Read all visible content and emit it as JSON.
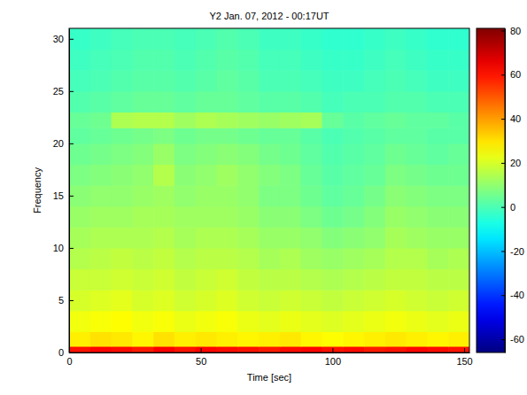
{
  "chart_data": {
    "type": "heatmap",
    "title": "Y2   Jan. 07, 2012 - 00:17UT",
    "x_label": "Time [sec]",
    "y_label": "Frequency",
    "xlim": [
      0,
      152
    ],
    "xticks": [
      0,
      50,
      100,
      150
    ],
    "ylim": [
      0,
      31
    ],
    "yticks": [
      0,
      5,
      10,
      15,
      20,
      25,
      30
    ],
    "x_bins": [
      0,
      8,
      16,
      24,
      32,
      40,
      48,
      56,
      64,
      72,
      80,
      88,
      96,
      104,
      112,
      120,
      128,
      136,
      144,
      152
    ],
    "y_bins": [
      0,
      0.6,
      2,
      4,
      6,
      8,
      10,
      12,
      14,
      16,
      18,
      20,
      21.5,
      23,
      25,
      27,
      29,
      31
    ],
    "cells": [
      [
        60,
        62,
        61,
        59,
        63,
        60,
        62,
        61,
        60,
        59,
        61,
        62,
        60,
        61,
        59,
        60,
        62,
        61,
        60
      ],
      [
        28,
        30,
        29,
        27,
        30,
        28,
        29,
        28,
        27,
        28,
        29,
        27,
        26,
        27,
        28,
        29,
        28,
        27,
        28
      ],
      [
        24,
        25,
        26,
        24,
        25,
        23,
        24,
        25,
        23,
        22,
        23,
        22,
        21,
        22,
        23,
        24,
        23,
        22,
        23
      ],
      [
        20,
        21,
        22,
        20,
        21,
        19,
        20,
        21,
        19,
        18,
        19,
        18,
        17,
        18,
        19,
        20,
        19,
        18,
        19
      ],
      [
        18,
        18,
        19,
        18,
        19,
        17,
        18,
        19,
        17,
        16,
        16,
        15,
        14,
        15,
        16,
        17,
        17,
        16,
        16
      ],
      [
        15,
        16,
        17,
        16,
        17,
        15,
        16,
        16,
        15,
        13,
        14,
        12,
        11,
        12,
        13,
        15,
        15,
        13,
        14
      ],
      [
        13,
        14,
        14,
        14,
        15,
        13,
        14,
        14,
        13,
        11,
        11,
        10,
        8,
        9,
        10,
        13,
        12,
        11,
        11
      ],
      [
        11,
        12,
        12,
        13,
        13,
        12,
        12,
        12,
        11,
        9,
        9,
        7,
        5,
        6,
        8,
        11,
        10,
        9,
        9
      ],
      [
        9,
        10,
        10,
        11,
        12,
        10,
        11,
        11,
        10,
        7,
        7,
        5,
        3,
        4,
        6,
        9,
        8,
        7,
        7
      ],
      [
        7,
        8,
        9,
        10,
        15,
        9,
        10,
        12,
        10,
        8,
        7,
        4,
        2,
        3,
        4,
        7,
        6,
        5,
        5
      ],
      [
        5,
        6,
        7,
        8,
        11,
        7,
        8,
        9,
        8,
        6,
        5,
        3,
        1,
        2,
        3,
        5,
        4,
        3,
        4
      ],
      [
        3,
        4,
        5,
        6,
        7,
        5,
        6,
        6,
        5,
        4,
        4,
        2,
        0,
        1,
        2,
        3,
        3,
        2,
        2
      ],
      [
        4,
        5,
        14,
        15,
        15,
        12,
        14,
        13,
        12,
        11,
        12,
        13,
        4,
        2,
        3,
        4,
        3,
        3,
        2
      ],
      [
        1,
        2,
        3,
        4,
        4,
        3,
        4,
        4,
        3,
        2,
        2,
        1,
        -1,
        0,
        0,
        1,
        1,
        0,
        0
      ],
      [
        -1,
        0,
        1,
        2,
        2,
        1,
        2,
        3,
        2,
        0,
        0,
        -1,
        -2,
        -2,
        -1,
        0,
        -1,
        -2,
        -2
      ],
      [
        -2,
        -1,
        0,
        1,
        1,
        0,
        1,
        2,
        1,
        -1,
        -1,
        -2,
        -3,
        -3,
        -2,
        -1,
        -2,
        -3,
        -3
      ],
      [
        -3,
        -2,
        -1,
        0,
        0,
        -1,
        0,
        1,
        0,
        -2,
        -2,
        -3,
        -4,
        -4,
        -3,
        -2,
        -3,
        -4,
        -4
      ]
    ],
    "zlim": [
      -66,
      81
    ],
    "zticks": [
      -60,
      -40,
      -20,
      0,
      20,
      40,
      60,
      80
    ]
  }
}
